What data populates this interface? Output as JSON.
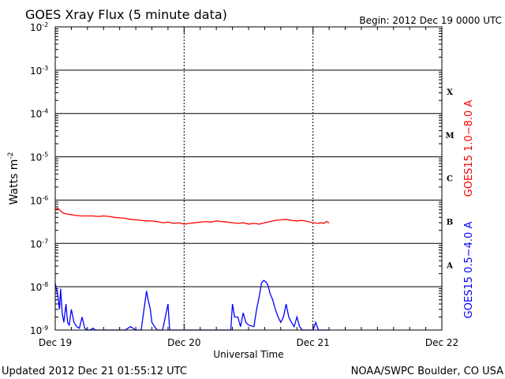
{
  "chart_data": {
    "type": "line",
    "title": "GOES Xray Flux (5 minute data)",
    "begin_label": "Begin:  2012 Dec 19 0000 UTC",
    "ylabel_main": "Watts m",
    "ylabel_sup": "-2",
    "xlabel": "Universal Time",
    "y_scale": "log",
    "ylim": [
      1e-09,
      0.01
    ],
    "y_ticks": [
      {
        "value": 0.01,
        "base": "10",
        "exp": "-2"
      },
      {
        "value": 0.001,
        "base": "10",
        "exp": "-3"
      },
      {
        "value": 0.0001,
        "base": "10",
        "exp": "-4"
      },
      {
        "value": 1e-05,
        "base": "10",
        "exp": "-5"
      },
      {
        "value": 1e-06,
        "base": "10",
        "exp": "-6"
      },
      {
        "value": 1e-07,
        "base": "10",
        "exp": "-7"
      },
      {
        "value": 1e-08,
        "base": "10",
        "exp": "-8"
      },
      {
        "value": 1e-09,
        "base": "10",
        "exp": "-9"
      }
    ],
    "xlim": [
      0,
      72
    ],
    "x_unit": "hours since Dec 19 00:00 UTC",
    "x_ticks": [
      {
        "value": 0,
        "label": "Dec 19"
      },
      {
        "value": 24,
        "label": "Dec 20"
      },
      {
        "value": 48,
        "label": "Dec 21"
      },
      {
        "value": 72,
        "label": "Dec 22"
      }
    ],
    "flare_classes": [
      {
        "label": "X",
        "value": 0.00032
      },
      {
        "label": "M",
        "value": 3.2e-05
      },
      {
        "label": "C",
        "value": 3.2e-06
      },
      {
        "label": "B",
        "value": 3.2e-07
      },
      {
        "label": "A",
        "value": 3.2e-08
      }
    ],
    "series": [
      {
        "name": "GOES15 1.0−8.0 A",
        "color": "#ff0000",
        "points": [
          [
            0,
            6e-07
          ],
          [
            0.5,
            6.5e-07
          ],
          [
            1,
            5.6e-07
          ],
          [
            1.5,
            5e-07
          ],
          [
            2,
            4.8e-07
          ],
          [
            3,
            4.6e-07
          ],
          [
            4,
            4.4e-07
          ],
          [
            5,
            4.3e-07
          ],
          [
            6,
            4.3e-07
          ],
          [
            7,
            4.3e-07
          ],
          [
            8,
            4.2e-07
          ],
          [
            9,
            4.3e-07
          ],
          [
            10,
            4.2e-07
          ],
          [
            11,
            4e-07
          ],
          [
            12,
            3.9e-07
          ],
          [
            13,
            3.8e-07
          ],
          [
            14,
            3.6e-07
          ],
          [
            15,
            3.5e-07
          ],
          [
            16,
            3.4e-07
          ],
          [
            17,
            3.3e-07
          ],
          [
            18,
            3.3e-07
          ],
          [
            19,
            3.2e-07
          ],
          [
            20,
            3e-07
          ],
          [
            21,
            3.1e-07
          ],
          [
            22,
            2.9e-07
          ],
          [
            23,
            3e-07
          ],
          [
            24,
            2.8e-07
          ],
          [
            25,
            2.9e-07
          ],
          [
            26,
            3e-07
          ],
          [
            27,
            3.1e-07
          ],
          [
            28,
            3.2e-07
          ],
          [
            29,
            3.1e-07
          ],
          [
            30,
            3.3e-07
          ],
          [
            31,
            3.2e-07
          ],
          [
            32,
            3.1e-07
          ],
          [
            33,
            3e-07
          ],
          [
            34,
            2.9e-07
          ],
          [
            35,
            3e-07
          ],
          [
            36,
            2.8e-07
          ],
          [
            37,
            2.9e-07
          ],
          [
            38,
            2.8e-07
          ],
          [
            39,
            3e-07
          ],
          [
            40,
            3.2e-07
          ],
          [
            41,
            3.4e-07
          ],
          [
            42,
            3.5e-07
          ],
          [
            43,
            3.6e-07
          ],
          [
            44,
            3.4e-07
          ],
          [
            45,
            3.3e-07
          ],
          [
            46,
            3.4e-07
          ],
          [
            47,
            3.2e-07
          ],
          [
            48,
            3e-07
          ],
          [
            49,
            2.9e-07
          ],
          [
            49.5,
            3e-07
          ],
          [
            50,
            2.9e-07
          ],
          [
            50.5,
            3.2e-07
          ],
          [
            51,
            3e-07
          ]
        ]
      },
      {
        "name": "GOES15 0.5−4.0 A",
        "color": "#0000ff",
        "points": [
          [
            0,
            1.2e-08
          ],
          [
            0.5,
            6e-09
          ],
          [
            0.8,
            3e-09
          ],
          [
            1,
            9e-09
          ],
          [
            1.3,
            2.5e-09
          ],
          [
            1.6,
            1.5e-09
          ],
          [
            2,
            4e-09
          ],
          [
            2.3,
            1.5e-09
          ],
          [
            2.6,
            1.3e-09
          ],
          [
            3,
            3e-09
          ],
          [
            3.5,
            1.5e-09
          ],
          [
            4,
            1.2e-09
          ],
          [
            4.5,
            1.1e-09
          ],
          [
            5,
            2e-09
          ],
          [
            5.5,
            1.1e-09
          ],
          [
            6,
            1e-09
          ],
          [
            6.5,
            1e-09
          ],
          [
            7,
            1.1e-09
          ],
          [
            7.5,
            1e-09
          ],
          [
            8,
            1e-09
          ],
          [
            8.5,
            1e-09
          ],
          [
            9,
            1e-09
          ],
          [
            10,
            1e-09
          ],
          [
            11,
            1e-09
          ],
          [
            12,
            1e-09
          ],
          [
            13,
            1e-09
          ],
          [
            14,
            1.2e-09
          ],
          [
            15,
            1e-09
          ],
          [
            16,
            1e-09
          ],
          [
            17,
            8e-09
          ],
          [
            17.3,
            5e-09
          ],
          [
            17.7,
            3e-09
          ],
          [
            18,
            1.5e-09
          ],
          [
            18.5,
            1.2e-09
          ],
          [
            19,
            1e-09
          ],
          [
            20,
            1e-09
          ],
          [
            21,
            4e-09
          ],
          [
            21.3,
            1e-09
          ],
          [
            22,
            1e-09
          ],
          [
            23,
            1e-09
          ],
          [
            24,
            1e-09
          ],
          [
            25,
            1e-09
          ],
          [
            26,
            1e-09
          ],
          [
            27,
            1e-09
          ],
          [
            28,
            1e-09
          ],
          [
            29,
            1e-09
          ],
          [
            30,
            1e-09
          ],
          [
            31,
            1e-09
          ],
          [
            32,
            1e-09
          ],
          [
            32.7,
            1e-09
          ],
          [
            33,
            4e-09
          ],
          [
            33.4,
            2e-09
          ],
          [
            34,
            2e-09
          ],
          [
            34.5,
            1.2e-09
          ],
          [
            35,
            2.5e-09
          ],
          [
            35.5,
            1.5e-09
          ],
          [
            36,
            1.3e-09
          ],
          [
            37,
            1.2e-09
          ],
          [
            37.5,
            3e-09
          ],
          [
            38,
            6e-09
          ],
          [
            38.4,
            1.2e-08
          ],
          [
            38.8,
            1.4e-08
          ],
          [
            39.2,
            1.3e-08
          ],
          [
            39.6,
            1.1e-08
          ],
          [
            40,
            7e-09
          ],
          [
            40.5,
            5e-09
          ],
          [
            41,
            3e-09
          ],
          [
            41.5,
            2e-09
          ],
          [
            42,
            1.5e-09
          ],
          [
            42.5,
            2e-09
          ],
          [
            43,
            4e-09
          ],
          [
            43.5,
            2e-09
          ],
          [
            44,
            1.5e-09
          ],
          [
            44.5,
            1.2e-09
          ],
          [
            45,
            2e-09
          ],
          [
            45.5,
            1.2e-09
          ],
          [
            46,
            1e-09
          ],
          [
            47,
            1e-09
          ],
          [
            48,
            1e-09
          ],
          [
            48.5,
            1.5e-09
          ],
          [
            49,
            1e-09
          ],
          [
            50,
            1e-09
          ],
          [
            51,
            1e-09
          ]
        ]
      }
    ],
    "footer_left": "Updated 2012 Dec 21 01:55:12 UTC",
    "footer_right": "NOAA/SWPC Boulder, CO USA"
  }
}
